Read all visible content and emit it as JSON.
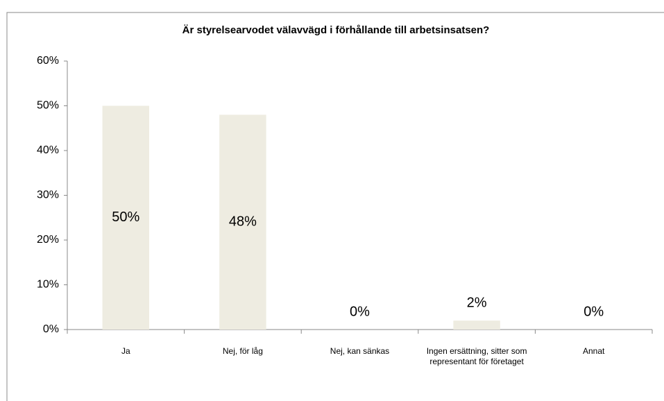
{
  "chart_data": {
    "type": "bar",
    "title": "Är styrelsearvodet välavvägd i förhållande till arbetsinsatsen?",
    "categories": [
      "Ja",
      "Nej, för låg",
      "Nej, kan sänkas",
      "Ingen ersättning, sitter som representant för företaget",
      "Annat"
    ],
    "values": [
      50,
      48,
      0,
      2,
      0
    ],
    "value_labels": [
      "50%",
      "48%",
      "0%",
      "2%",
      "0%"
    ],
    "color": "#eeece1",
    "ylim": [
      0,
      60
    ],
    "yticks": [
      {
        "value": 0,
        "label": "0%"
      },
      {
        "value": 10,
        "label": "10%"
      },
      {
        "value": 20,
        "label": "20%"
      },
      {
        "value": 30,
        "label": "30%"
      },
      {
        "value": 40,
        "label": "40%"
      },
      {
        "value": 50,
        "label": "50%"
      },
      {
        "value": 60,
        "label": "60%"
      }
    ],
    "grid": false
  }
}
